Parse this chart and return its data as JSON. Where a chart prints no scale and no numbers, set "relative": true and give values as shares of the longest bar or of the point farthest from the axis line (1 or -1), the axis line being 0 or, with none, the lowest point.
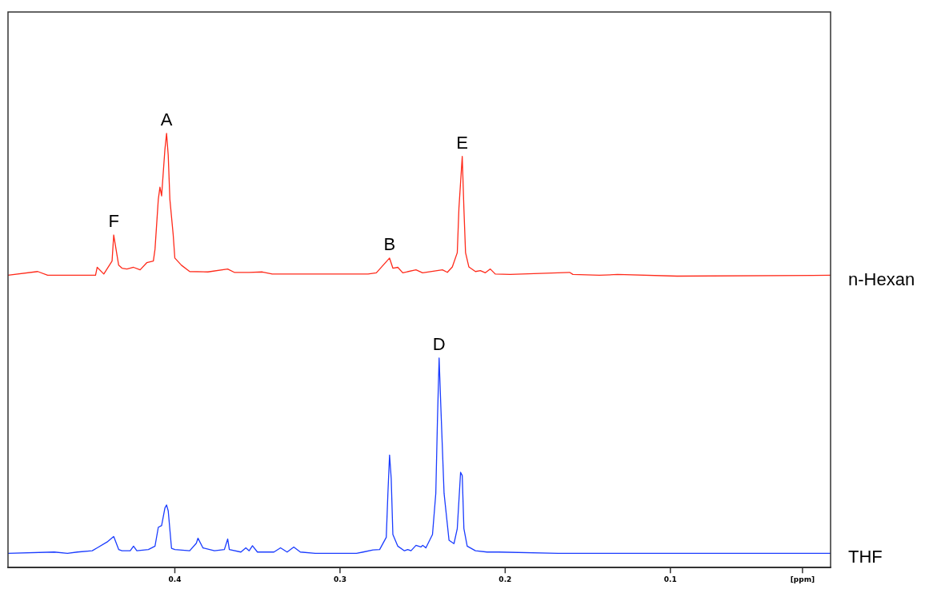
{
  "chart_data": {
    "type": "line",
    "relative": true,
    "legend": false,
    "grid": false,
    "marker": "none",
    "line_style": "solid",
    "tick_labels": "x",
    "xlim": [
      0.501,
      0.003
    ],
    "xticks": [
      {
        "value": 0.4,
        "label": "0.4"
      },
      {
        "value": 0.3,
        "label": "0.3"
      },
      {
        "value": 0.2,
        "label": "0.2"
      },
      {
        "value": 0.1,
        "label": "0.1"
      },
      {
        "value": 0.02,
        "label": "[ppm]"
      }
    ],
    "annotations": [
      {
        "text": "F",
        "x": 0.437,
        "y": 0.758
      },
      {
        "text": "A",
        "x": 0.405,
        "y": 1.0
      },
      {
        "text": "B",
        "x": 0.27,
        "y": 0.703
      },
      {
        "text": "D",
        "x": 0.24,
        "y": 0.465
      },
      {
        "text": "E",
        "x": 0.226,
        "y": 0.945
      }
    ],
    "series": [
      {
        "name": "n-Hexan",
        "color": "#ff2a1a",
        "x": [
          0.501,
          0.483,
          0.477,
          0.448,
          0.447,
          0.443,
          0.438,
          0.437,
          0.434,
          0.432,
          0.429,
          0.425,
          0.421,
          0.417,
          0.413,
          0.412,
          0.41,
          0.409,
          0.408,
          0.406,
          0.405,
          0.404,
          0.403,
          0.401,
          0.4,
          0.396,
          0.391,
          0.38,
          0.368,
          0.364,
          0.355,
          0.347,
          0.341,
          0.283,
          0.278,
          0.27,
          0.268,
          0.265,
          0.262,
          0.254,
          0.25,
          0.238,
          0.235,
          0.232,
          0.229,
          0.228,
          0.226,
          0.225,
          0.224,
          0.222,
          0.218,
          0.215,
          0.212,
          0.209,
          0.206,
          0.197,
          0.161,
          0.159,
          0.143,
          0.132,
          0.096,
          0.003
        ],
        "values": [
          0.662,
          0.671,
          0.662,
          0.662,
          0.681,
          0.665,
          0.696,
          0.758,
          0.686,
          0.679,
          0.677,
          0.681,
          0.675,
          0.692,
          0.696,
          0.724,
          0.843,
          0.872,
          0.851,
          0.962,
          1.0,
          0.948,
          0.843,
          0.759,
          0.703,
          0.686,
          0.671,
          0.67,
          0.677,
          0.669,
          0.669,
          0.67,
          0.665,
          0.665,
          0.668,
          0.703,
          0.679,
          0.681,
          0.668,
          0.675,
          0.668,
          0.675,
          0.669,
          0.682,
          0.716,
          0.822,
          0.945,
          0.822,
          0.716,
          0.682,
          0.671,
          0.673,
          0.668,
          0.677,
          0.665,
          0.664,
          0.669,
          0.664,
          0.662,
          0.664,
          0.66,
          0.662
        ]
      },
      {
        "name": "THF",
        "color": "#1a3cff",
        "x": [
          0.501,
          0.473,
          0.465,
          0.459,
          0.45,
          0.447,
          0.441,
          0.437,
          0.434,
          0.432,
          0.427,
          0.425,
          0.423,
          0.416,
          0.412,
          0.41,
          0.408,
          0.406,
          0.405,
          0.404,
          0.402,
          0.4,
          0.391,
          0.387,
          0.386,
          0.383,
          0.376,
          0.37,
          0.368,
          0.367,
          0.36,
          0.357,
          0.355,
          0.353,
          0.35,
          0.34,
          0.336,
          0.332,
          0.328,
          0.324,
          0.315,
          0.29,
          0.286,
          0.28,
          0.276,
          0.272,
          0.271,
          0.27,
          0.269,
          0.268,
          0.265,
          0.261,
          0.259,
          0.257,
          0.254,
          0.251,
          0.25,
          0.248,
          0.244,
          0.242,
          0.241,
          0.24,
          0.239,
          0.237,
          0.234,
          0.231,
          0.229,
          0.227,
          0.226,
          0.225,
          0.223,
          0.218,
          0.211,
          0.204,
          0.168,
          0.096,
          0.003
        ],
        "values": [
          0.0,
          0.003,
          0.0,
          0.003,
          0.006,
          0.013,
          0.027,
          0.04,
          0.009,
          0.006,
          0.006,
          0.017,
          0.006,
          0.009,
          0.017,
          0.062,
          0.066,
          0.108,
          0.115,
          0.101,
          0.012,
          0.009,
          0.006,
          0.024,
          0.036,
          0.013,
          0.006,
          0.009,
          0.034,
          0.009,
          0.003,
          0.013,
          0.006,
          0.018,
          0.003,
          0.003,
          0.013,
          0.003,
          0.015,
          0.003,
          0.0,
          0.0,
          0.003,
          0.008,
          0.009,
          0.038,
          0.143,
          0.234,
          0.178,
          0.045,
          0.017,
          0.006,
          0.009,
          0.006,
          0.019,
          0.015,
          0.019,
          0.013,
          0.045,
          0.143,
          0.318,
          0.465,
          0.354,
          0.143,
          0.031,
          0.023,
          0.059,
          0.193,
          0.185,
          0.059,
          0.017,
          0.006,
          0.003,
          0.003,
          0.0,
          0.0,
          0.0
        ]
      }
    ]
  }
}
